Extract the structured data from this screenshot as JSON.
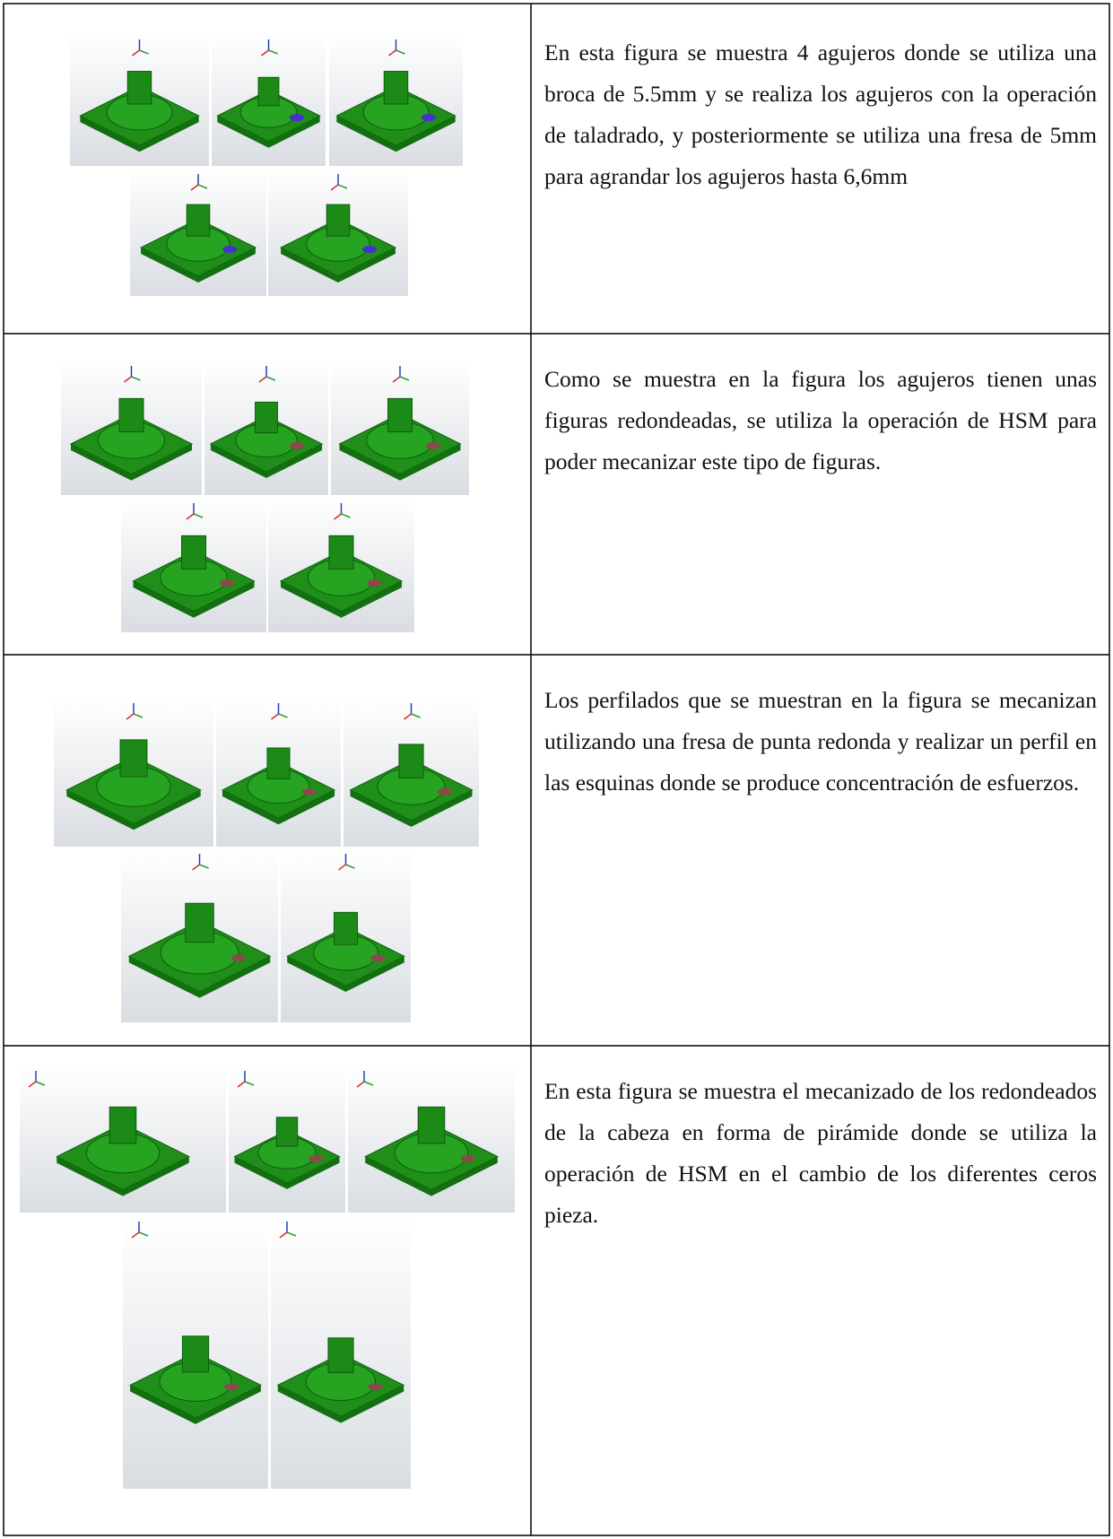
{
  "table": {
    "rows": [
      {
        "text": "En esta figura se muestra 4 agujeros donde se utiliza una broca de 5.5mm y se realiza los agujeros con la operación de taladrado, y posteriormente se utiliza una fresa de 5mm para agrandar los agujeros hasta 6,6mm"
      },
      {
        "text": "Como se muestra en la figura los agujeros tienen unas figuras redondeadas, se utiliza la operación de HSM para poder mecanizar este tipo de figuras."
      },
      {
        "text": "Los perfilados que se muestran en la figura se mecanizan utilizando una fresa de punta redonda y realizar un perfil en las esquinas donde se produce concentración de esfuerzos."
      },
      {
        "text": "En esta figura se muestra el mecanizado de los redondeados de la cabeza en forma de pirámide donde se utiliza la operación de HSM en el cambio de los diferentes ceros pieza."
      }
    ]
  }
}
